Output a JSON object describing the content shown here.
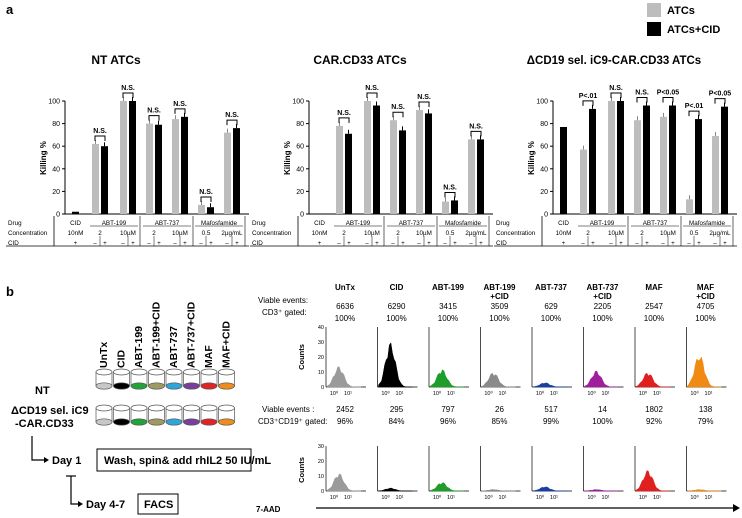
{
  "panel_a": {
    "letter": "a",
    "legend": [
      {
        "label": "ATCs",
        "color": "#bdbdbd"
      },
      {
        "label": "ATCs+CID",
        "color": "#000000"
      }
    ],
    "ylabel": "Killing %",
    "yticks": [
      "0",
      "20",
      "40",
      "60",
      "80",
      "100"
    ],
    "row_labels": [
      "Drug",
      "Concentration",
      "CID"
    ],
    "drugs": [
      "CID",
      "ABT-199",
      "ABT-737",
      "Mafosfamide"
    ],
    "drug_headers": [
      "ABT-199",
      "ABT-737",
      "Mafosfamide"
    ],
    "conc_first": "10nM",
    "concs": [
      "2",
      "10µM",
      "2",
      "10µM",
      "0.5",
      "2µg/mL"
    ],
    "cid_first": "+",
    "cid_pair": [
      "–",
      "+"
    ]
  },
  "chart_data": [
    {
      "type": "bar",
      "title": "NT ATCs",
      "ylabel": "Killing %",
      "ylim": [
        0,
        100
      ],
      "cid_alone": 2,
      "categories": [
        "ABT-199 2",
        "ABT-199 10µM",
        "ABT-737 2",
        "ABT-737 10µM",
        "Mafosfamide 0.5",
        "Mafosfamide 2µg/mL"
      ],
      "series": [
        {
          "name": "ATCs",
          "values": [
            62,
            100,
            80,
            84,
            8,
            72
          ]
        },
        {
          "name": "ATCs+CID",
          "values": [
            60,
            100,
            79,
            86,
            6,
            76
          ]
        }
      ],
      "annotations": [
        "N.S.",
        "N.S.",
        "N.S.",
        "N.S.",
        "N.S.",
        "N.S."
      ]
    },
    {
      "type": "bar",
      "title": "CAR.CD33 ATCs",
      "ylabel": "Killing %",
      "ylim": [
        0,
        100
      ],
      "cid_alone": 0,
      "categories": [
        "ABT-199 2",
        "ABT-199 10µM",
        "ABT-737 2",
        "ABT-737 10µM",
        "Mafosfamide 0.5",
        "Mafosfamide 2µg/mL"
      ],
      "series": [
        {
          "name": "ATCs",
          "values": [
            78,
            100,
            83,
            92,
            11,
            66
          ]
        },
        {
          "name": "ATCs+CID",
          "values": [
            71,
            96,
            74,
            89,
            12,
            66
          ]
        }
      ],
      "annotations": [
        "N.S.",
        "N.S.",
        "N.S.",
        "N.S.",
        "N.S.",
        "N.S."
      ]
    },
    {
      "type": "bar",
      "title": "ΔCD19 sel. iC9-CAR.CD33 ATCs",
      "ylabel": "Killing %",
      "ylim": [
        0,
        100
      ],
      "cid_alone": 77,
      "categories": [
        "ABT-199 2",
        "ABT-199 10µM",
        "ABT-737 2",
        "ABT-737 10µM",
        "Mafosfamide 0.5",
        "Mafosfamide 2µg/mL"
      ],
      "series": [
        {
          "name": "ATCs",
          "values": [
            57,
            100,
            83,
            86,
            13,
            69
          ]
        },
        {
          "name": "ATCs+CID",
          "values": [
            93,
            100,
            96,
            96,
            84,
            95
          ]
        }
      ],
      "annotations": [
        "P<.01",
        "N.S.",
        "N.S.",
        "P<0.05",
        "P<.01",
        "P<0.05"
      ]
    }
  ],
  "panel_b": {
    "letter": "b",
    "tube_labels": [
      "UnTx",
      "CID",
      "ABT-199",
      "ABT-199+CID",
      "ABT-737",
      "ABT-737+CID",
      "MAF",
      "MAF+CID"
    ],
    "tube_colors": [
      "#c8c8c8",
      "#000000",
      "#22a33a",
      "#9e9a62",
      "#2ea6d9",
      "#7a3e9d",
      "#e02424",
      "#ee8c1e"
    ],
    "row_nt": "NT",
    "row_icar_line1": "ΔCD19 sel. iC9",
    "row_icar_line2": "-CAR.CD33",
    "step_day1": "Day 1",
    "step_wash": "Wash, spin& add rhIL2 50 IU/mL",
    "step_day47": "Day 4-7",
    "step_facs": "FACS",
    "facs_col_labels": [
      [
        "UnTx",
        ""
      ],
      [
        "CID",
        ""
      ],
      [
        "ABT-199",
        ""
      ],
      [
        "ABT-199",
        "+CID"
      ],
      [
        "ABT-737",
        ""
      ],
      [
        "ABT-737",
        "+CID"
      ],
      [
        "MAF",
        ""
      ],
      [
        "MAF",
        "+CID"
      ]
    ],
    "hist_colors": [
      "#9a9a9a",
      "#000000",
      "#1f9d2a",
      "#8a8a8a",
      "#1a3fa0",
      "#a01f9a",
      "#e01f1f",
      "#f08a12"
    ],
    "viable_label": "Viable events:",
    "cd3_label": "CD3⁺ gated:",
    "viable_label2": "Viable events :",
    "cd3cd19_label": "CD3⁺CD19⁺ gated:",
    "nt_events": [
      "6636",
      "6290",
      "3415",
      "3509",
      "629",
      "2205",
      "2547",
      "4705"
    ],
    "nt_gated": [
      "100%",
      "100%",
      "100%",
      "100%",
      "100%",
      "100%",
      "100%",
      "100%"
    ],
    "icar_events": [
      "2452",
      "295",
      "797",
      "26",
      "517",
      "14",
      "1802",
      "138"
    ],
    "icar_gated": [
      "96%",
      "84%",
      "96%",
      "85%",
      "99%",
      "100%",
      "92%",
      "79%"
    ],
    "counts_label": "Counts",
    "hist_yticks_top": [
      "0",
      "10",
      "20",
      "30",
      "40"
    ],
    "hist_yticks_bottom": [
      "0",
      "10",
      "20",
      "30"
    ],
    "hist_xticks": [
      "10⁰",
      "10¹"
    ],
    "x_axis_label": "7-AAD",
    "nt_peaks": [
      14,
      30,
      12,
      10,
      3,
      11,
      10,
      22
    ],
    "icar_peaks": [
      12,
      2,
      6,
      1,
      3,
      1,
      14,
      1
    ]
  }
}
